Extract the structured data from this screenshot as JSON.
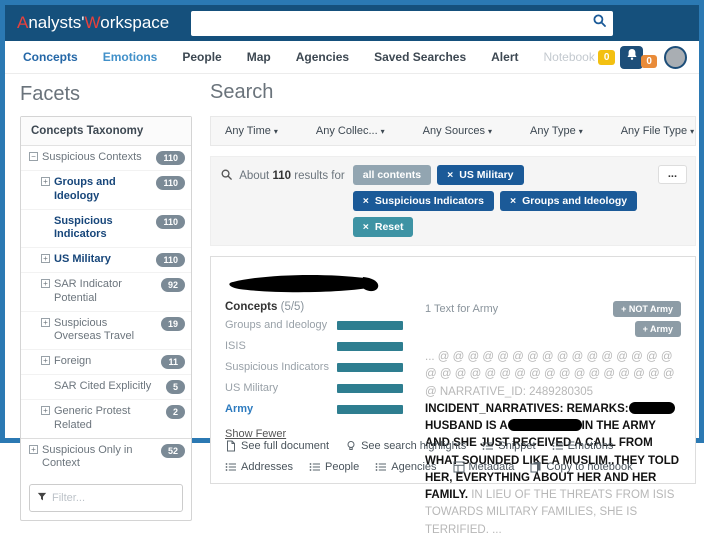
{
  "topbar": {
    "brand": {
      "p1_initial": "A",
      "p1_rest": "nalysts'",
      "p2_initial": "W",
      "p2_rest": "orkspace"
    },
    "search_value": ""
  },
  "nav": {
    "items": [
      {
        "label": "Concepts",
        "state": "active-primary"
      },
      {
        "label": "Emotions",
        "state": "active-secondary"
      },
      {
        "label": "People",
        "state": ""
      },
      {
        "label": "Map",
        "state": ""
      },
      {
        "label": "Agencies",
        "state": ""
      },
      {
        "label": "Saved Searches",
        "state": ""
      },
      {
        "label": "Alert",
        "state": ""
      }
    ],
    "notebook_label": "Notebook",
    "notebook_count": "0",
    "alerts_count": "0"
  },
  "facets": {
    "title": "Facets",
    "panel_header": "Concepts Taxonomy",
    "items": [
      {
        "label": "Suspicious Contexts",
        "count": "110",
        "expander": "minus",
        "level": 0,
        "selected": false,
        "sep_top": false
      },
      {
        "label": "Groups and Ideology",
        "count": "110",
        "expander": "plus",
        "level": 1,
        "selected": true,
        "sep_top": false
      },
      {
        "label": "Suspicious Indicators",
        "count": "110",
        "expander": "none",
        "level": 1,
        "selected": true,
        "sep_top": false
      },
      {
        "label": "US Military",
        "count": "110",
        "expander": "plus",
        "level": 1,
        "selected": true,
        "sep_top": false
      },
      {
        "label": "SAR Indicator Potential",
        "count": "92",
        "expander": "plus",
        "level": 1,
        "selected": false,
        "sep_top": false
      },
      {
        "label": "Suspicious Overseas Travel",
        "count": "19",
        "expander": "plus",
        "level": 1,
        "selected": false,
        "sep_top": false
      },
      {
        "label": "Foreign",
        "count": "11",
        "expander": "plus",
        "level": 1,
        "selected": false,
        "sep_top": false
      },
      {
        "label": "SAR Cited Explicitly",
        "count": "5",
        "expander": "none",
        "level": 1,
        "selected": false,
        "sep_top": false
      },
      {
        "label": "Generic Protest Related",
        "count": "2",
        "expander": "plus",
        "level": 1,
        "selected": false,
        "sep_top": false
      },
      {
        "label": "Suspicious Only in Context",
        "count": "52",
        "expander": "plus",
        "level": 0,
        "selected": false,
        "sep_top": true
      }
    ],
    "filter_placeholder": "Filter..."
  },
  "search_section": {
    "title": "Search",
    "dropdowns": [
      "Any Time",
      "Any Collec...",
      "Any Sources",
      "Any Type",
      "Any File Type"
    ],
    "summary": {
      "prefix": "About",
      "count": "110",
      "suffix": "results for"
    },
    "pills": [
      {
        "label": "all contents",
        "type": "muted",
        "closable": false
      },
      {
        "label": "US Military",
        "type": "primary",
        "closable": true
      },
      {
        "label": "Suspicious Indicators",
        "type": "primary",
        "closable": true
      },
      {
        "label": "Groups and Ideology",
        "type": "primary",
        "closable": true
      },
      {
        "label": "Reset",
        "type": "teal",
        "closable": true
      }
    ],
    "more_button": "..."
  },
  "result": {
    "concepts_header": "Concepts",
    "concepts_counter": "(5/5)",
    "concepts": [
      {
        "name": "Groups and Ideology",
        "active": false
      },
      {
        "name": "ISIS",
        "active": false
      },
      {
        "name": "Suspicious Indicators",
        "active": false
      },
      {
        "name": "US Military",
        "active": false
      },
      {
        "name": "Army",
        "active": true
      }
    ],
    "show_fewer": "Show Fewer",
    "text_header": "1 Text for Army",
    "tag_buttons": [
      "+ NOT Army",
      "+ Army"
    ],
    "snippet": {
      "lead": "... @ @ @ @ @ @ @ @ @ @ @ @ @ @ @ @ @ @ @ @ @ @ @ @ @ @ @ @ @ @ @ @ @ @ NARRATIVE_ID: 2489280305 ",
      "bold1": "INCIDENT_NARRATIVES: REMARKS:",
      "bold2": "HUSBAND IS A",
      "bold3": "IN THE ARMY AND SHE JUST RECEIVED A CALL FROM WHAT SOUNDED LIKE A MUSLIM..THEY TOLD HER, EVERYTHING ABOUT HER AND HER FAMILY.",
      "tail": " IN LIEU OF THE THREATS FROM ISIS TOWARDS MILITARY FAMILIES, SHE IS TERRIFIED. ..."
    },
    "actions": [
      {
        "label": "See full document",
        "icon": "document"
      },
      {
        "label": "See search highlights",
        "icon": "lightbulb"
      },
      {
        "label": "Snippet",
        "icon": "list"
      },
      {
        "label": "Emotions",
        "icon": "list"
      },
      {
        "label": "Addresses",
        "icon": "list"
      },
      {
        "label": "People",
        "icon": "list"
      },
      {
        "label": "Agencies",
        "icon": "list"
      },
      {
        "label": "Metadata",
        "icon": "table"
      },
      {
        "label": "Copy to notebook",
        "icon": "copy"
      }
    ]
  }
}
